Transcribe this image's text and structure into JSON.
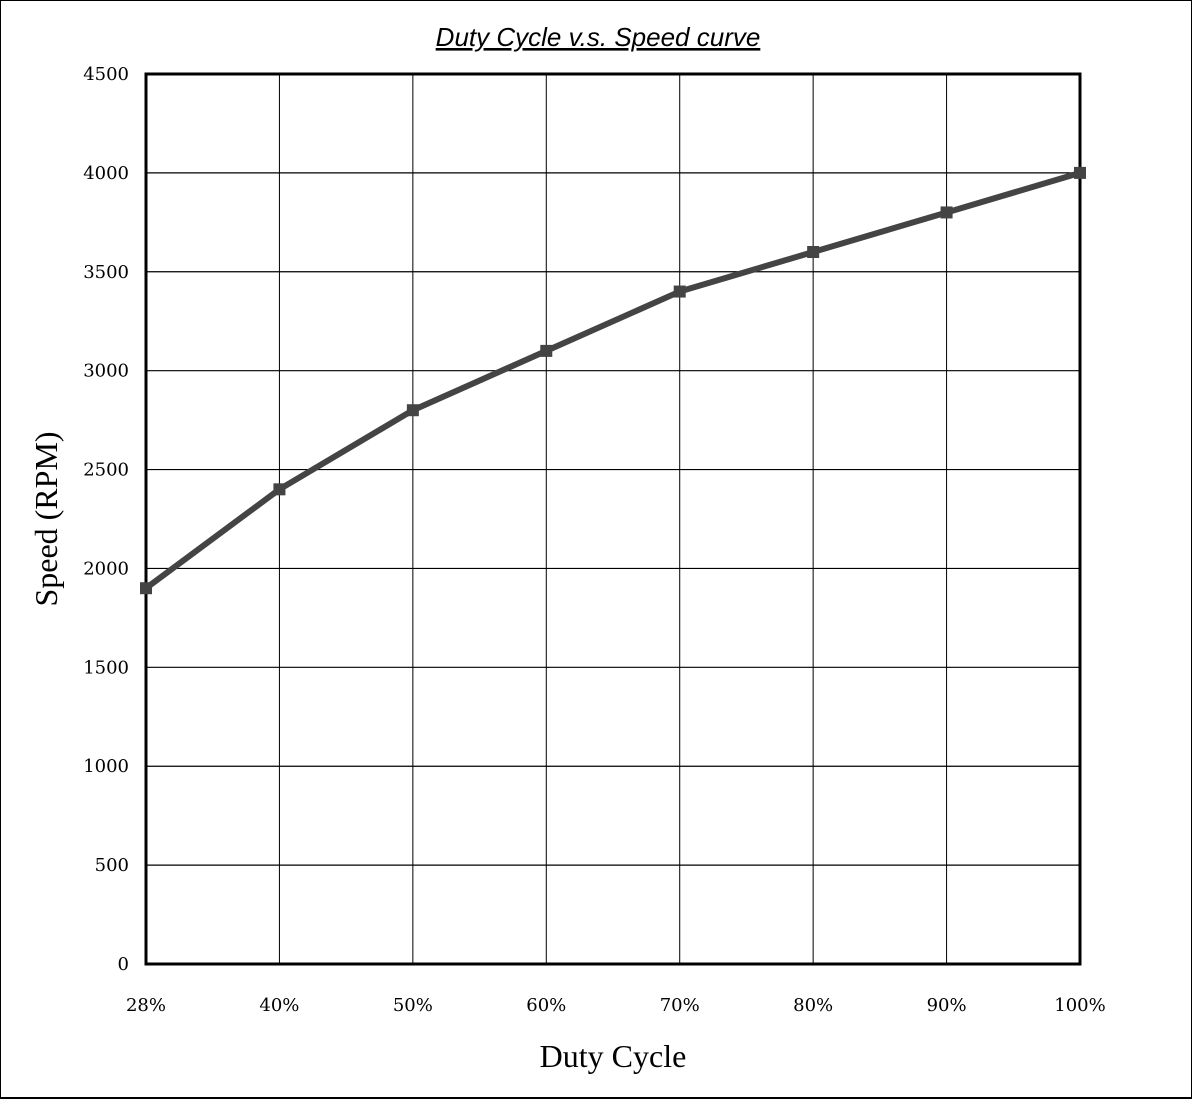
{
  "chart_data": {
    "type": "line",
    "title": "Duty  Cycle v.s. Speed curve",
    "xlabel": "Duty Cycle",
    "ylabel": "Speed (RPM)",
    "categories": [
      "28%",
      "40%",
      "50%",
      "60%",
      "70%",
      "80%",
      "90%",
      "100%"
    ],
    "series": [
      {
        "values": [
          1900,
          2400,
          2800,
          3100,
          3400,
          3600,
          3800,
          4000
        ]
      }
    ],
    "ylim": [
      0,
      4500
    ],
    "yticks": [
      "0",
      "500",
      "1000",
      "1500",
      "2000",
      "2500",
      "3000",
      "3500",
      "4000",
      "4500"
    ],
    "grid": true,
    "line_color": "#444444",
    "marker": "square"
  }
}
